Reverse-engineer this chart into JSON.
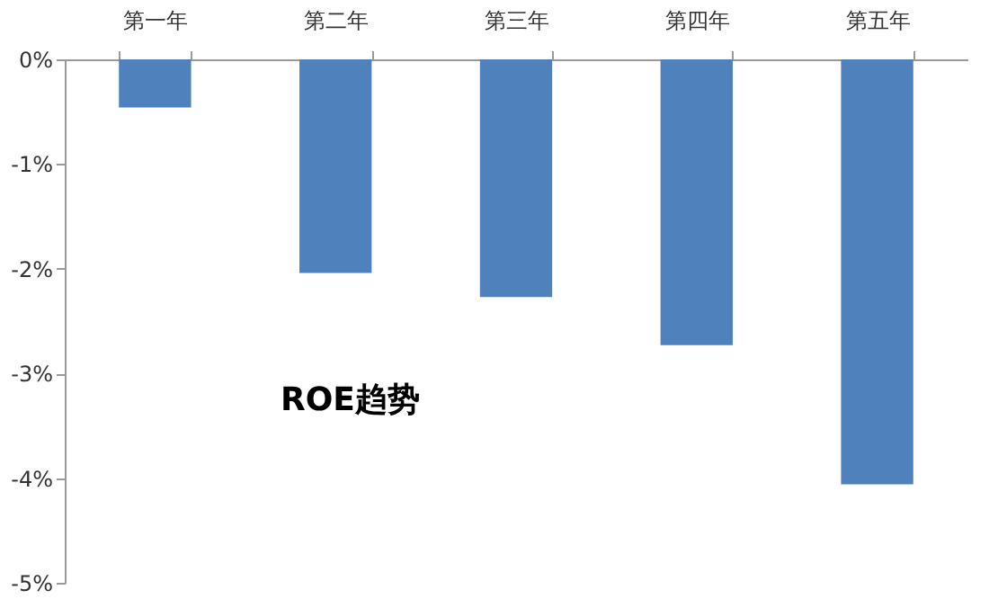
{
  "chart_data": {
    "type": "bar",
    "categories": [
      "第一年",
      "第二年",
      "第三年",
      "第四年",
      "第五年"
    ],
    "values": [
      -0.46,
      -2.04,
      -2.27,
      -2.73,
      -4.06
    ],
    "color": "#4f81bd",
    "ylim": [
      -5,
      0
    ],
    "yticks": [
      {
        "value": 0,
        "label": "0%"
      },
      {
        "value": -1,
        "label": "-1%"
      },
      {
        "value": -2,
        "label": "-2%"
      },
      {
        "value": -3,
        "label": "-3%"
      },
      {
        "value": -4,
        "label": "-4%"
      },
      {
        "value": -5,
        "label": "-5%"
      }
    ],
    "annotations": [
      "ROE趋势"
    ],
    "grid": false
  }
}
